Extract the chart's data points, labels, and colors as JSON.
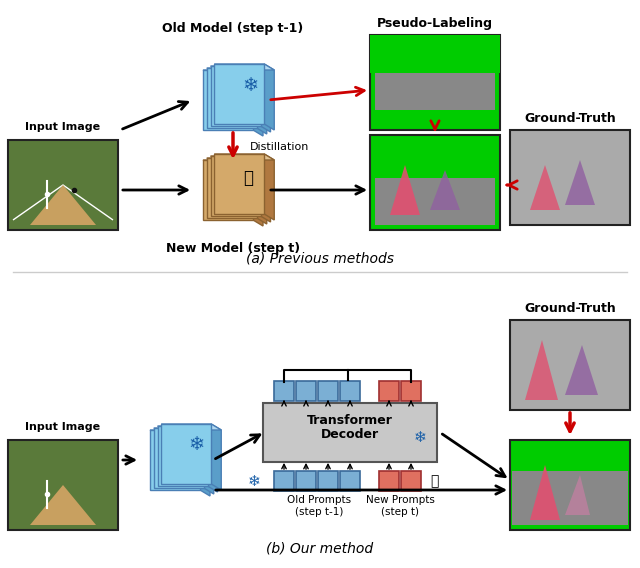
{
  "fig_width": 6.4,
  "fig_height": 5.68,
  "bg_color": "#ffffff",
  "top_label_a": "(a) Previous methods",
  "top_label_b": "(b) Our method",
  "text_old_model": "Old Model (step t-1)",
  "text_new_model": "New Model (step t)",
  "text_pseudo": "Pseudo-Labeling",
  "text_ground_truth": "Ground-Truth",
  "text_input_image": "Input Image",
  "text_distillation": "Distillation",
  "text_transformer_decoder": "Transformer\nDecoder",
  "text_old_prompts": "Old Prompts\n(step t-1)",
  "text_new_prompts": "New Prompts\n(step t)",
  "blue_color": "#6baed6",
  "blue_dark": "#4292c6",
  "orange_color": "#d4a96a",
  "orange_dark": "#b07d40",
  "red_color": "#cc0000",
  "black_color": "#000000",
  "green_color": "#00cc00",
  "decoder_bg": "#d0d0d0",
  "prompt_blue": "#7bafd4",
  "prompt_red": "#e07060"
}
